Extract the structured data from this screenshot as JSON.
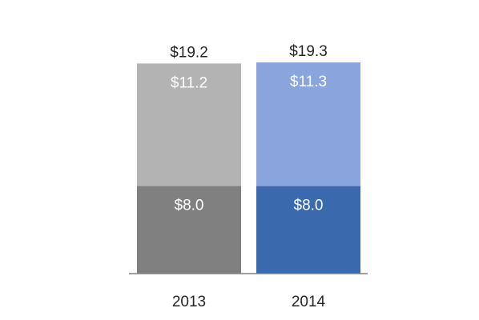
{
  "chart_data": {
    "type": "bar",
    "stacked": true,
    "categories": [
      "2013",
      "2014"
    ],
    "series": [
      {
        "values": [
          8.0,
          8.0
        ],
        "labels": [
          "$8.0",
          "$8.0"
        ],
        "colors": [
          "#808080",
          "#3a6aad"
        ]
      },
      {
        "values": [
          11.2,
          11.3
        ],
        "labels": [
          "$11.2",
          "$11.3"
        ],
        "colors": [
          "#b3b3b3",
          "#8aa5de"
        ]
      }
    ],
    "totals": [
      19.2,
      19.3
    ],
    "total_labels": [
      "$19.2",
      "$19.3"
    ],
    "ylim": [
      0,
      19.3
    ],
    "grid": false,
    "legend": "none",
    "axis_color": "#808080"
  }
}
